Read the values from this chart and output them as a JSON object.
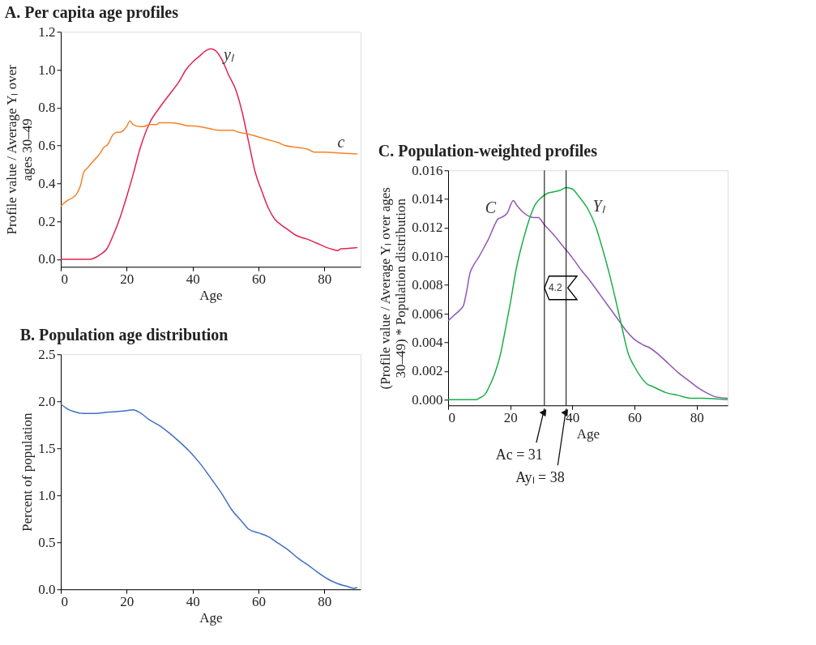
{
  "chart_data": [
    {
      "type": "line",
      "title": "A. Per capita age profiles",
      "xlabel": "Age",
      "ylabel": "Profile value / Average Yₗ over ages 30–49",
      "xlim": [
        0,
        91
      ],
      "xticks": [
        0,
        20,
        40,
        60,
        80
      ],
      "ylim": [
        -0.04,
        1.2
      ],
      "yticks": [
        {
          "value": 0,
          "label": "0.0"
        },
        {
          "value": 0.2,
          "label": "0.2"
        },
        {
          "value": 0.4,
          "label": "0.4"
        },
        {
          "value": 0.6,
          "label": "0.6"
        },
        {
          "value": 0.8,
          "label": "0.8"
        },
        {
          "value": 1.0,
          "label": "1.0"
        },
        {
          "value": 1.2,
          "label": "1.2"
        }
      ],
      "series": [
        {
          "name": "yₗ",
          "color": "#e3234e",
          "x": [
            0,
            9,
            10,
            12,
            14,
            16,
            18,
            20,
            22,
            24,
            27,
            30,
            33,
            36,
            38,
            40,
            42,
            44,
            45.5,
            47,
            49,
            51,
            53,
            55,
            57,
            59,
            61,
            63,
            65,
            67,
            69,
            71,
            73,
            75,
            77,
            79,
            81,
            83,
            84,
            85,
            88,
            90
          ],
          "values": [
            0,
            0,
            0.005,
            0.025,
            0.055,
            0.13,
            0.22,
            0.33,
            0.45,
            0.58,
            0.72,
            0.8,
            0.87,
            0.94,
            1.0,
            1.04,
            1.07,
            1.1,
            1.11,
            1.1,
            1.05,
            0.97,
            0.9,
            0.78,
            0.62,
            0.46,
            0.36,
            0.27,
            0.21,
            0.18,
            0.155,
            0.13,
            0.115,
            0.105,
            0.09,
            0.075,
            0.06,
            0.05,
            0.045,
            0.055,
            0.058,
            0.062
          ]
        },
        {
          "name": "c",
          "color": "#f5822a",
          "x": [
            0,
            2,
            4,
            5,
            6,
            7,
            8,
            10,
            12,
            13,
            14,
            16,
            17,
            18,
            19,
            20,
            21,
            22,
            24,
            25,
            27,
            29,
            30,
            33,
            36,
            38,
            42,
            45,
            48,
            52,
            54,
            57,
            60,
            63,
            66,
            68,
            72,
            75,
            77,
            80,
            85,
            90
          ],
          "values": [
            0.28,
            0.31,
            0.33,
            0.35,
            0.39,
            0.46,
            0.48,
            0.52,
            0.56,
            0.59,
            0.6,
            0.66,
            0.67,
            0.67,
            0.68,
            0.7,
            0.73,
            0.71,
            0.7,
            0.7,
            0.71,
            0.71,
            0.72,
            0.72,
            0.715,
            0.705,
            0.7,
            0.69,
            0.68,
            0.68,
            0.67,
            0.66,
            0.645,
            0.63,
            0.615,
            0.6,
            0.59,
            0.58,
            0.565,
            0.565,
            0.56,
            0.555
          ]
        }
      ]
    },
    {
      "type": "line",
      "title": "B. Population age distribution",
      "xlabel": "Age",
      "ylabel": "Percent of population",
      "xlim": [
        0,
        91
      ],
      "xticks": [
        0,
        20,
        40,
        60,
        80
      ],
      "ylim": [
        0,
        2.5
      ],
      "yticks": [
        {
          "value": 0,
          "label": "0.0"
        },
        {
          "value": 0.5,
          "label": "0.5"
        },
        {
          "value": 1.0,
          "label": "1.0"
        },
        {
          "value": 1.5,
          "label": "1.5"
        },
        {
          "value": 2.0,
          "label": "2.0"
        },
        {
          "value": 2.5,
          "label": "2.5"
        }
      ],
      "series": [
        {
          "color": "#3f6fc4",
          "x": [
            0,
            2,
            4,
            7,
            10,
            13,
            17,
            20,
            22,
            24,
            27,
            30,
            33,
            36,
            39,
            42,
            46,
            49,
            52,
            55,
            57,
            60,
            63,
            66,
            69,
            72,
            75,
            78,
            81,
            84,
            87,
            89,
            90
          ],
          "values": [
            1.97,
            1.92,
            1.89,
            1.87,
            1.87,
            1.88,
            1.89,
            1.9,
            1.91,
            1.88,
            1.8,
            1.74,
            1.66,
            1.57,
            1.47,
            1.35,
            1.16,
            1.01,
            0.84,
            0.72,
            0.64,
            0.6,
            0.56,
            0.49,
            0.42,
            0.33,
            0.26,
            0.18,
            0.11,
            0.06,
            0.03,
            0.01,
            0.02
          ]
        }
      ]
    },
    {
      "type": "line",
      "title": "C. Population-weighted profiles",
      "xlabel": "Age",
      "ylabel": "(Profile value / Average Yₗ over ages 30–49) * Population distribution",
      "xlim": [
        0,
        90
      ],
      "xticks": [
        0,
        20,
        40,
        60,
        80
      ],
      "ylim": [
        -0.0004,
        0.016
      ],
      "yticks": [
        {
          "value": 0,
          "label": "0.000"
        },
        {
          "value": 0.002,
          "label": "0.002"
        },
        {
          "value": 0.004,
          "label": "0.004"
        },
        {
          "value": 0.006,
          "label": "0.006"
        },
        {
          "value": 0.008,
          "label": "0.008"
        },
        {
          "value": 0.01,
          "label": "0.010"
        },
        {
          "value": 0.012,
          "label": "0.012"
        },
        {
          "value": 0.014,
          "label": "0.014"
        },
        {
          "value": 0.016,
          "label": "0.016"
        }
      ],
      "series": [
        {
          "name": "C",
          "color": "#9455b5",
          "x": [
            0,
            2,
            4,
            5,
            6,
            7,
            8,
            10,
            12,
            13,
            15,
            16,
            17,
            19,
            21,
            22,
            24,
            26,
            28,
            29,
            31,
            34,
            37,
            40,
            43,
            46,
            49,
            52,
            55,
            57,
            60,
            63,
            65,
            68,
            71,
            74,
            77,
            80,
            83,
            86,
            90
          ],
          "values": [
            0.0055,
            0.0059,
            0.0063,
            0.0066,
            0.0076,
            0.0088,
            0.0093,
            0.01,
            0.0108,
            0.0112,
            0.0122,
            0.0126,
            0.0127,
            0.013,
            0.0139,
            0.0136,
            0.0131,
            0.0128,
            0.0127,
            0.0127,
            0.0122,
            0.0115,
            0.0107,
            0.0099,
            0.009,
            0.0082,
            0.0073,
            0.0064,
            0.0055,
            0.0049,
            0.0042,
            0.0038,
            0.0036,
            0.0031,
            0.0025,
            0.0019,
            0.0014,
            0.0009,
            0.0005,
            0.0002,
            0.0001
          ]
        },
        {
          "name": "Yₗ",
          "color": "#1aae4a",
          "x": [
            0,
            9,
            10,
            12,
            13,
            15,
            17,
            18,
            20,
            22,
            24,
            26,
            28,
            30,
            32,
            34,
            36,
            38,
            40,
            42,
            45,
            47.5,
            50,
            52,
            54,
            56,
            58,
            60,
            62,
            64,
            66,
            70,
            74,
            78,
            82,
            90
          ],
          "values": [
            0,
            0,
            0.0001,
            0.0004,
            0.0008,
            0.0018,
            0.0033,
            0.0044,
            0.0067,
            0.0092,
            0.011,
            0.0125,
            0.0136,
            0.0141,
            0.0144,
            0.0145,
            0.0146,
            0.0148,
            0.0147,
            0.0142,
            0.0133,
            0.0121,
            0.0103,
            0.0087,
            0.0069,
            0.005,
            0.0032,
            0.0023,
            0.0016,
            0.0011,
            0.0009,
            0.0005,
            0.0003,
            0.0001,
            0.0001,
            0
          ]
        }
      ],
      "ref_lines": [
        {
          "axis": "x",
          "value": 31,
          "label": "Ac = 31",
          "color": "#000000"
        },
        {
          "axis": "x",
          "value": 38,
          "label": "Ayₗ = 38",
          "color": "#000000"
        }
      ],
      "annotations": [
        "4.2"
      ]
    }
  ]
}
